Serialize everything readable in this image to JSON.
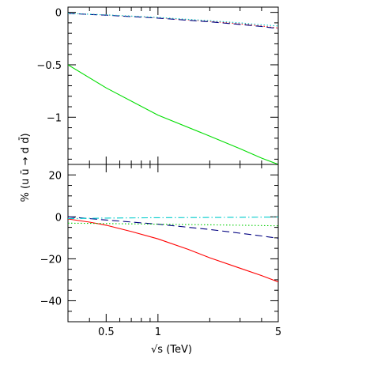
{
  "chart_data": [
    {
      "type": "line",
      "panel": "top",
      "xscale": "log",
      "xlim": [
        0.3,
        5
      ],
      "ylim": [
        -1.45,
        0.05
      ],
      "yticks": [
        0,
        -0.5,
        -1
      ],
      "ytick_labels": [
        "0",
        "−0.5",
        "−1"
      ],
      "series": [
        {
          "style": "solid",
          "color": "#00dd00",
          "x": [
            0.3,
            0.5,
            1,
            2,
            3,
            4,
            5
          ],
          "y": [
            -0.5,
            -0.72,
            -0.98,
            -1.18,
            -1.3,
            -1.39,
            -1.45
          ]
        },
        {
          "style": "dotted",
          "color": "#ff0000",
          "x": [
            0.3,
            0.5,
            1,
            2,
            3,
            4,
            5
          ],
          "y": [
            -0.01,
            -0.025,
            -0.05,
            -0.085,
            -0.11,
            -0.13,
            -0.15
          ]
        },
        {
          "style": "dashed",
          "color": "#000080",
          "x": [
            0.3,
            0.5,
            1,
            2,
            3,
            4,
            5
          ],
          "y": [
            -0.01,
            -0.027,
            -0.055,
            -0.09,
            -0.115,
            -0.135,
            -0.155
          ]
        },
        {
          "style": "dotted",
          "color": "#00cccc",
          "x": [
            0.3,
            0.5,
            1,
            2,
            3,
            4,
            5
          ],
          "y": [
            -0.01,
            -0.024,
            -0.048,
            -0.08,
            -0.1,
            -0.118,
            -0.13
          ]
        }
      ]
    },
    {
      "type": "line",
      "panel": "bottom",
      "xscale": "log",
      "xlim": [
        0.3,
        5
      ],
      "ylim": [
        -50,
        25
      ],
      "yticks": [
        20,
        0,
        -20,
        -40
      ],
      "ytick_labels": [
        "20",
        "0",
        "−20",
        "−40"
      ],
      "series": [
        {
          "style": "solid",
          "color": "#ff0000",
          "x": [
            0.3,
            0.4,
            0.5,
            0.7,
            1,
            1.5,
            2,
            3,
            4,
            5
          ],
          "y": [
            -1,
            -2.5,
            -4,
            -7,
            -10.5,
            -15.5,
            -19.5,
            -24.5,
            -28,
            -31
          ]
        },
        {
          "style": "dashed",
          "color": "#000080",
          "x": [
            0.3,
            0.5,
            1,
            2,
            3,
            4,
            5
          ],
          "y": [
            0,
            -1.5,
            -3.5,
            -6,
            -7.8,
            -9.1,
            -10.2
          ]
        },
        {
          "style": "dotted",
          "color": "#00cc00",
          "x": [
            0.3,
            0.5,
            1,
            2,
            3,
            5
          ],
          "y": [
            -3,
            -3.2,
            -3.5,
            -3.8,
            -4,
            -4.3
          ]
        },
        {
          "style": "dashdot",
          "color": "#00cccc",
          "x": [
            0.3,
            0.5,
            1,
            2,
            3,
            5
          ],
          "y": [
            -0.8,
            -0.6,
            -0.4,
            -0.3,
            -0.2,
            -0.1
          ]
        }
      ]
    }
  ],
  "xticks": [
    0.5,
    1,
    5
  ],
  "xtick_labels": [
    "0.5",
    "1",
    "5"
  ],
  "xlabel": "√s (TeV)",
  "ylabel": "% (u ū → d d̄)",
  "colors": {
    "axes": "#000000",
    "background": "#ffffff"
  }
}
